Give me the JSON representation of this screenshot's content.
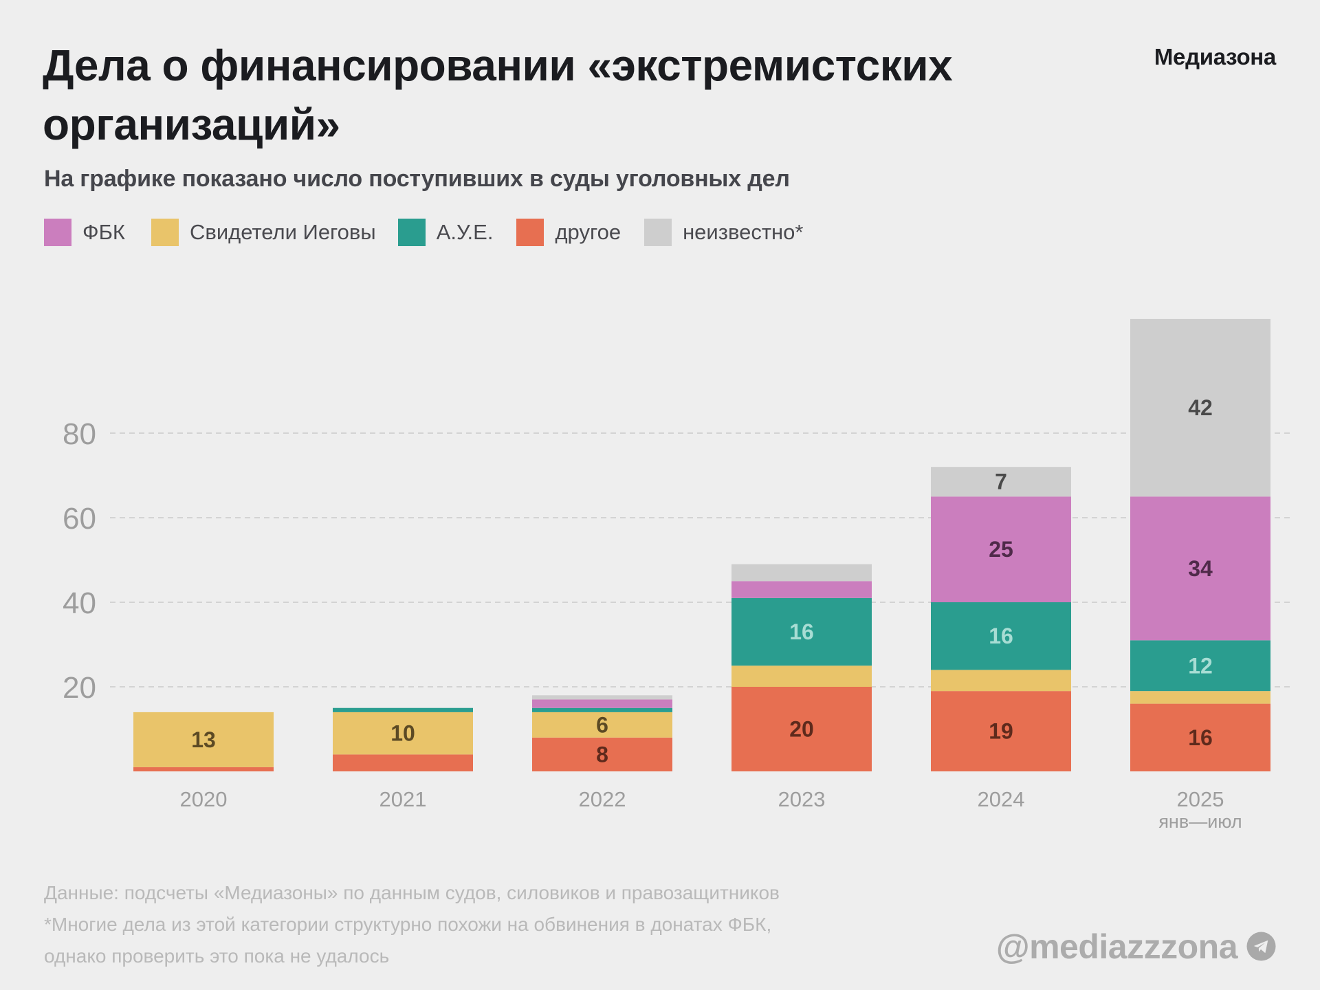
{
  "header": {
    "title_line1": "Дела о финансировании «экстремистских",
    "title_line2": "организаций»",
    "brand": "Медиазона",
    "subtitle": "На графике показано число поступивших в суды уголовных дел"
  },
  "legend": [
    {
      "key": "fbk",
      "label": "ФБК",
      "color": "#cb7ebe"
    },
    {
      "key": "jw",
      "label": "Свидетели Иеговы",
      "color": "#e9c46a"
    },
    {
      "key": "aue",
      "label": "А.У.Е.",
      "color": "#2a9d8f"
    },
    {
      "key": "other",
      "label": "другое",
      "color": "#e76f51"
    },
    {
      "key": "unknown",
      "label": "неизвестно*",
      "color": "#cecece"
    }
  ],
  "chart_data": {
    "type": "bar",
    "stacked": true,
    "title": "Дела о финансировании «экстремистских организаций»",
    "subtitle": "На графике показано число поступивших в суды уголовных дел",
    "categories": [
      "2020",
      "2021",
      "2022",
      "2023",
      "2024",
      "2025"
    ],
    "category_sublabels": [
      "",
      "",
      "",
      "",
      "",
      "янв—июл"
    ],
    "series": [
      {
        "name": "другое",
        "key": "other",
        "color": "#e76f51",
        "label_color": "#5e2a1c",
        "values": [
          1,
          4,
          8,
          20,
          19,
          16
        ],
        "labels": [
          "",
          "",
          "8",
          "20",
          "19",
          "16"
        ]
      },
      {
        "name": "Свидетели Иеговы",
        "key": "jw",
        "color": "#e9c46a",
        "label_color": "#5c4a24",
        "values": [
          13,
          10,
          6,
          5,
          5,
          3
        ],
        "labels": [
          "13",
          "10",
          "6",
          "",
          "",
          ""
        ]
      },
      {
        "name": "А.У.Е.",
        "key": "aue",
        "color": "#2a9d8f",
        "label_color": "#a8ddd4",
        "values": [
          0,
          1,
          1,
          16,
          16,
          12
        ],
        "labels": [
          "",
          "",
          "",
          "16",
          "16",
          "12"
        ]
      },
      {
        "name": "ФБК",
        "key": "fbk",
        "color": "#cb7ebe",
        "label_color": "#4f2a4a",
        "values": [
          0,
          0,
          2,
          4,
          25,
          34
        ],
        "labels": [
          "",
          "",
          "",
          "",
          "25",
          "34"
        ]
      },
      {
        "name": "неизвестно*",
        "key": "unknown",
        "color": "#cecece",
        "label_color": "#4a4a4a",
        "values": [
          0,
          0,
          1,
          4,
          7,
          42
        ],
        "labels": [
          "",
          "",
          "",
          "",
          "7",
          "42"
        ]
      }
    ],
    "yticks": [
      20,
      40,
      60,
      80
    ],
    "ylim": [
      0,
      110
    ],
    "xlabel": "",
    "ylabel": "",
    "grid": true,
    "legend_position": "top-left"
  },
  "footer": {
    "source": "Данные: подсчеты «Медиазоны» по данным судов, силовиков и правозащитников",
    "note_line1": "*Многие дела из этой категории структурно похожи на обвинения в донатах ФБК,",
    "note_line2": "однако проверить это пока не удалось"
  },
  "watermark": {
    "handle": "@mediazzzona",
    "icon": "telegram-icon"
  }
}
